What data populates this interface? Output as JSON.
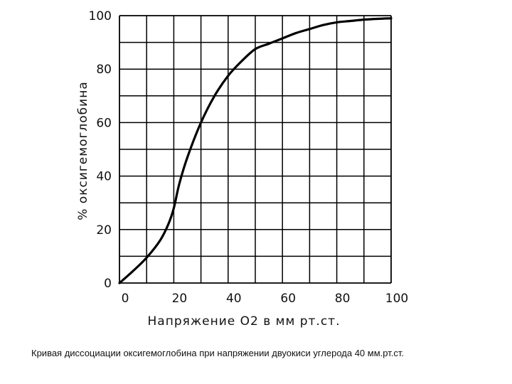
{
  "chart_data": {
    "type": "line",
    "title": "",
    "xlabel": "Напряжение O2 в мм рт.ст.",
    "ylabel": "% оксигемоглобина",
    "xlim": [
      0,
      100
    ],
    "ylim": [
      0,
      100
    ],
    "x_ticks": [
      "0",
      "20",
      "40",
      "60",
      "80",
      "100"
    ],
    "y_ticks": [
      "0",
      "20",
      "40",
      "60",
      "80",
      "100"
    ],
    "grid": true,
    "legend": "none",
    "series": [
      {
        "x": [
          0,
          5,
          10,
          15,
          18,
          20,
          22,
          25,
          30,
          35,
          40,
          45,
          50,
          55,
          60,
          65,
          70,
          75,
          80,
          85,
          90,
          95,
          100
        ],
        "y": [
          0,
          4.5,
          9.5,
          16,
          22,
          28,
          37,
          47,
          60,
          70,
          77.5,
          83,
          87.5,
          89.5,
          91.5,
          93.5,
          95,
          96.5,
          97.5,
          98,
          98.5,
          98.8,
          99
        ],
        "color": "#000000"
      }
    ]
  },
  "caption": "Кривая диссоциации оксигемоглобина при напряжении двуокиси углерода 40 мм.рт.ст."
}
